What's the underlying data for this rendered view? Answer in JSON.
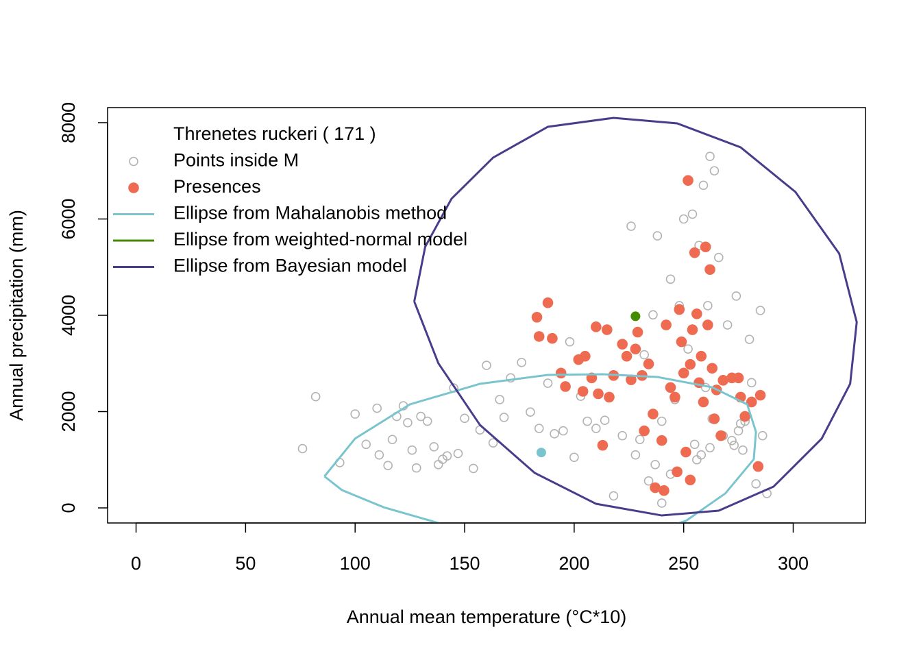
{
  "chart_data": {
    "type": "scatter",
    "xlabel": "Annual mean temperature (°C*10)",
    "ylabel": "Annual precipitation (mm)",
    "legend_title": "Threnetes ruckeri ( 171 )",
    "legend": "top-left",
    "xlim": [
      -13,
      333
    ],
    "ylim": [
      -313,
      8313
    ],
    "xticks": [
      0,
      50,
      100,
      150,
      200,
      250,
      300
    ],
    "yticks": [
      0,
      2000,
      4000,
      6000,
      8000
    ],
    "series": [
      {
        "name": "Points inside M",
        "type": "scatter",
        "marker": "open",
        "color": "#b3b3b3",
        "x": [
          76,
          82,
          93,
          100,
          105,
          110,
          111,
          115,
          117,
          119,
          122,
          124,
          126,
          128,
          130,
          133,
          136,
          138,
          140,
          142,
          145,
          147,
          150,
          154,
          157,
          160,
          163,
          166,
          168,
          171,
          176,
          180,
          184,
          188,
          191,
          195,
          198,
          200,
          203,
          206,
          210,
          214,
          218,
          222,
          226,
          230,
          232,
          234,
          236,
          238,
          240,
          242,
          244,
          246,
          248,
          250,
          252,
          254,
          255,
          257,
          258,
          259,
          260,
          261,
          262,
          263,
          264,
          266,
          268,
          270,
          272,
          274,
          275,
          277,
          278,
          280,
          281,
          283,
          285,
          288,
          286,
          276,
          273,
          262,
          256,
          244,
          240,
          237,
          228
        ],
        "values": [
          1230,
          2310,
          940,
          1950,
          1320,
          2070,
          1100,
          880,
          1420,
          1900,
          2120,
          1770,
          1200,
          830,
          1900,
          1800,
          1270,
          900,
          1010,
          1080,
          2490,
          1130,
          1860,
          820,
          1620,
          2960,
          1350,
          2250,
          1880,
          2700,
          3020,
          1990,
          1650,
          2590,
          1540,
          1600,
          3450,
          1050,
          2320,
          1800,
          1650,
          1820,
          250,
          1500,
          5850,
          1420,
          3180,
          560,
          4010,
          5650,
          1800,
          3790,
          4750,
          2250,
          4200,
          6000,
          3300,
          6100,
          1320,
          5450,
          1100,
          6700,
          2500,
          4200,
          7300,
          1850,
          7000,
          5200,
          1500,
          3800,
          1400,
          4400,
          1600,
          1200,
          1800,
          3500,
          2600,
          500,
          4100,
          300,
          1500,
          1750,
          1300,
          1250,
          1000,
          700,
          100,
          900,
          1100
        ]
      },
      {
        "name": "Presences",
        "type": "scatter",
        "marker": "filled",
        "color": "#ee6a50",
        "x": [
          183,
          184,
          188,
          190,
          194,
          196,
          202,
          204,
          205,
          208,
          210,
          211,
          213,
          215,
          216,
          218,
          222,
          224,
          226,
          228,
          229,
          231,
          232,
          234,
          236,
          237,
          240,
          241,
          242,
          244,
          246,
          247,
          248,
          250,
          251,
          252,
          253,
          254,
          255,
          256,
          257,
          258,
          259,
          260,
          261,
          262,
          263,
          264,
          265,
          267,
          268,
          272,
          275,
          276,
          278,
          281,
          284,
          285,
          249,
          253
        ],
        "values": [
          3960,
          3560,
          4260,
          3520,
          2800,
          2520,
          3080,
          2420,
          3150,
          2700,
          3760,
          2370,
          1300,
          3700,
          2300,
          2750,
          3400,
          3150,
          2660,
          3300,
          3650,
          2750,
          1600,
          2990,
          1950,
          420,
          1400,
          360,
          3800,
          2500,
          2300,
          750,
          4120,
          2800,
          1160,
          6800,
          580,
          3700,
          5300,
          4030,
          2600,
          3150,
          2200,
          5420,
          3800,
          4950,
          2900,
          1850,
          2450,
          1500,
          2650,
          2700,
          2700,
          2300,
          1900,
          2200,
          860,
          2340,
          3450,
          2980
        ]
      },
      {
        "name": "Ellipse from Mahalanobis method",
        "type": "line",
        "color": "#7ac5cd",
        "centroid": {
          "x": 185,
          "y": 1150
        },
        "x": [
          86,
          100,
          125,
          157,
          188,
          213,
          238,
          263,
          279,
          283,
          282,
          269,
          251,
          230,
          197,
          160,
          138,
          113,
          94,
          86
        ],
        "values": [
          655,
          1440,
          2150,
          2577,
          2762,
          2776,
          2719,
          2505,
          2150,
          1580,
          1010,
          300,
          -270,
          -560,
          -700,
          -620,
          -313,
          14,
          370,
          655
        ]
      },
      {
        "name": "Ellipse from weighted-normal model",
        "type": "line",
        "color": "#458b00",
        "centroid": {
          "x": 228,
          "y": 3980
        }
      },
      {
        "name": "Ellipse from Bayesian model",
        "type": "line",
        "color": "#483d8b",
        "x": [
          127,
          132,
          144,
          163,
          188,
          218,
          247,
          276,
          301,
          321,
          329,
          326,
          313,
          291,
          266,
          240,
          210,
          182,
          157,
          138,
          127
        ],
        "values": [
          4285,
          5423,
          6420,
          7274,
          7915,
          8100,
          7986,
          7488,
          6562,
          5281,
          3858,
          2577,
          1438,
          441,
          -57,
          -157,
          85,
          726,
          1722,
          3004,
          4285
        ]
      }
    ]
  }
}
